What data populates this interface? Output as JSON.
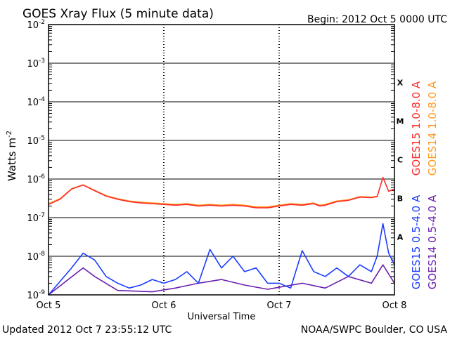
{
  "chart_data": {
    "type": "line",
    "title": "GOES Xray Flux (5 minute data)",
    "begin_text": "Begin:  2012 Oct 5 0000 UTC",
    "xlabel": "Universal Time",
    "ylabel": "Watts m",
    "ylabel_superscript": "-2",
    "yscale": "log",
    "ylim": [
      1e-09,
      0.01
    ],
    "x_ticks": [
      "Oct 5",
      "Oct 6",
      "Oct 7",
      "Oct 8"
    ],
    "x_range_days": [
      0,
      3
    ],
    "y_ticks": [
      {
        "mant": "10",
        "exp": "-9"
      },
      {
        "mant": "10",
        "exp": "-8"
      },
      {
        "mant": "10",
        "exp": "-7"
      },
      {
        "mant": "10",
        "exp": "-6"
      },
      {
        "mant": "10",
        "exp": "-5"
      },
      {
        "mant": "10",
        "exp": "-4"
      },
      {
        "mant": "10",
        "exp": "-3"
      },
      {
        "mant": "10",
        "exp": "-2"
      }
    ],
    "flare_classes": [
      {
        "label": "A",
        "log_level": -7.5
      },
      {
        "label": "B",
        "log_level": -6.5
      },
      {
        "label": "C",
        "log_level": -5.5
      },
      {
        "label": "M",
        "log_level": -4.5
      },
      {
        "label": "X",
        "log_level": -3.5
      }
    ],
    "series": [
      {
        "name": "GOES15 1.0-8.0 A",
        "color": "#ff2a2a",
        "x_days": [
          0.0,
          0.1,
          0.2,
          0.3,
          0.4,
          0.5,
          0.6,
          0.7,
          0.8,
          0.9,
          1.0,
          1.1,
          1.2,
          1.3,
          1.4,
          1.5,
          1.6,
          1.7,
          1.8,
          1.9,
          2.0,
          2.1,
          2.2,
          2.3,
          2.35,
          2.4,
          2.5,
          2.6,
          2.7,
          2.8,
          2.85,
          2.9,
          2.95,
          3.0
        ],
        "y": [
          2.2e-07,
          3e-07,
          5.5e-07,
          7e-07,
          5e-07,
          3.6e-07,
          3e-07,
          2.6e-07,
          2.4e-07,
          2.3e-07,
          2.2e-07,
          2.1e-07,
          2.2e-07,
          2e-07,
          2.1e-07,
          2e-07,
          2.1e-07,
          2e-07,
          1.8e-07,
          1.8e-07,
          2e-07,
          2.2e-07,
          2.1e-07,
          2.3e-07,
          2e-07,
          2.1e-07,
          2.6e-07,
          2.8e-07,
          3.4e-07,
          3.3e-07,
          3.5e-07,
          1.1e-06,
          4.8e-07,
          5.5e-07
        ]
      },
      {
        "name": "GOES14 1.0-8.0 A",
        "color": "#ff9a1a",
        "x_days": [
          0.0,
          0.1,
          0.2,
          0.3,
          0.4,
          0.5,
          0.6,
          0.7,
          0.8,
          0.9,
          1.0,
          1.1,
          1.2,
          1.3,
          1.4,
          1.5,
          1.6,
          1.7,
          1.8,
          1.9,
          2.0,
          2.1,
          2.2,
          2.3,
          2.35,
          2.4,
          2.5,
          2.6,
          2.7,
          2.8,
          2.85
        ],
        "y": [
          2.3e-07,
          3.1e-07,
          5.6e-07,
          7.1e-07,
          5.1e-07,
          3.7e-07,
          3.1e-07,
          2.7e-07,
          2.5e-07,
          2.4e-07,
          2.3e-07,
          2.2e-07,
          2.3e-07,
          2.1e-07,
          2.2e-07,
          2.1e-07,
          2.2e-07,
          2.1e-07,
          1.9e-07,
          1.9e-07,
          2.1e-07,
          2.3e-07,
          2.2e-07,
          2.4e-07,
          2.1e-07,
          2.2e-07,
          2.7e-07,
          2.9e-07,
          3.5e-07,
          3.4e-07,
          3.6e-07
        ]
      },
      {
        "name": "GOES15 0.5-4.0 A",
        "color": "#1a3cff",
        "x_days": [
          0.0,
          0.2,
          0.3,
          0.4,
          0.5,
          0.6,
          0.7,
          0.8,
          0.9,
          1.0,
          1.1,
          1.2,
          1.3,
          1.4,
          1.5,
          1.6,
          1.7,
          1.8,
          1.9,
          2.0,
          2.1,
          2.2,
          2.3,
          2.4,
          2.5,
          2.6,
          2.7,
          2.8,
          2.85,
          2.9,
          2.95,
          3.0
        ],
        "y": [
          1e-09,
          5e-09,
          1.2e-08,
          8e-09,
          3e-09,
          2e-09,
          1.5e-09,
          1.8e-09,
          2.5e-09,
          2e-09,
          2.5e-09,
          4e-09,
          2e-09,
          1.5e-08,
          5e-09,
          1e-08,
          4e-09,
          5e-09,
          2e-09,
          2e-09,
          1.5e-09,
          1.4e-08,
          4e-09,
          3e-09,
          5e-09,
          3e-09,
          6e-09,
          4e-09,
          1e-08,
          7e-08,
          1.2e-08,
          6e-09
        ]
      },
      {
        "name": "GOES14 0.5-4.0 A",
        "color": "#6a1fb0",
        "x_days": [
          0.0,
          0.3,
          0.4,
          0.6,
          0.9,
          1.1,
          1.3,
          1.5,
          1.7,
          1.9,
          2.2,
          2.4,
          2.6,
          2.8,
          2.9,
          3.0
        ],
        "y": [
          1e-09,
          5e-09,
          3e-09,
          1.3e-09,
          1.2e-09,
          1.5e-09,
          2e-09,
          2.5e-09,
          1.8e-09,
          1.4e-09,
          2e-09,
          1.5e-09,
          3e-09,
          2e-09,
          6e-09,
          2e-09
        ]
      }
    ],
    "grid": "horizontal at decades, dotted vertical at day boundaries",
    "legend": "vertical labels at right"
  },
  "footer": {
    "updated": "Updated 2012 Oct  7 23:55:12 UTC",
    "source": "NOAA/SWPC Boulder, CO USA"
  }
}
